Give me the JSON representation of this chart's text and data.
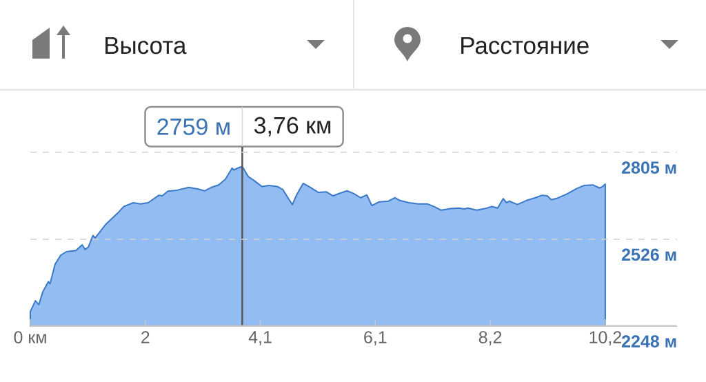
{
  "chart_data": {
    "type": "area",
    "xlabel": "Расстояние",
    "ylabel": "Высота",
    "x": [
      0,
      0.09,
      0.15,
      0.22,
      0.32,
      0.35,
      0.44,
      0.54,
      0.64,
      0.81,
      0.92,
      0.97,
      1.03,
      1.11,
      1.15,
      1.34,
      1.54,
      1.66,
      1.83,
      1.95,
      2.09,
      2.28,
      2.34,
      2.44,
      2.6,
      2.81,
      2.97,
      3.09,
      3.21,
      3.34,
      3.46,
      3.58,
      3.61,
      3.68,
      3.76,
      3.87,
      3.97,
      4.11,
      4.23,
      4.38,
      4.48,
      4.58,
      4.65,
      4.72,
      4.84,
      4.97,
      5.11,
      5.25,
      5.37,
      5.5,
      5.62,
      5.74,
      5.86,
      5.97,
      6.06,
      6.19,
      6.35,
      6.47,
      6.56,
      6.72,
      6.88,
      7.05,
      7.17,
      7.29,
      7.45,
      7.6,
      7.7,
      7.76,
      7.92,
      8.06,
      8.19,
      8.29,
      8.39,
      8.45,
      8.5,
      8.64,
      8.8,
      8.96,
      9.08,
      9.17,
      9.24,
      9.33,
      9.53,
      9.7,
      9.82,
      9.98,
      10.1,
      10.16,
      10.2
    ],
    "series": [
      {
        "color": "#3a78c8",
        "values": [
          2294,
          2329,
          2316,
          2357,
          2390,
          2383,
          2446,
          2475,
          2486,
          2490,
          2508,
          2493,
          2501,
          2538,
          2530,
          2574,
          2608,
          2631,
          2643,
          2639,
          2643,
          2667,
          2665,
          2680,
          2683,
          2692,
          2687,
          2681,
          2692,
          2700,
          2718,
          2754,
          2748,
          2754,
          2759,
          2726,
          2714,
          2695,
          2698,
          2695,
          2685,
          2656,
          2637,
          2667,
          2705,
          2692,
          2676,
          2678,
          2665,
          2674,
          2681,
          2672,
          2659,
          2668,
          2634,
          2646,
          2648,
          2659,
          2650,
          2643,
          2639,
          2639,
          2630,
          2619,
          2624,
          2626,
          2623,
          2626,
          2619,
          2624,
          2631,
          2626,
          2656,
          2643,
          2648,
          2637,
          2650,
          2659,
          2667,
          2665,
          2653,
          2656,
          2672,
          2689,
          2698,
          2700,
          2690,
          2696,
          2703
        ]
      }
    ],
    "xlim": [
      0,
      11.47
    ],
    "xticks": [
      {
        "value": 0,
        "label": "0 км"
      },
      {
        "value": 2.04,
        "label": "2"
      },
      {
        "value": 4.08,
        "label": "4,1"
      },
      {
        "value": 6.12,
        "label": "6,1"
      },
      {
        "value": 8.16,
        "label": "8,2"
      },
      {
        "value": 10.2,
        "label": "10,2"
      }
    ],
    "ylim": [
      2248,
      2805
    ],
    "yticks": [
      {
        "value": 2248,
        "label": "2248 м"
      },
      {
        "value": 2526,
        "label": "2526 м"
      },
      {
        "value": 2805,
        "label": "2805 м"
      }
    ],
    "grid": "y",
    "ref_lines": [
      {
        "axis": "x",
        "value": 3.76,
        "label": "3,76 км",
        "color": "#555555"
      }
    ],
    "annotations": [
      {
        "text": "2759 м",
        "x": 3.76,
        "y": 2759
      }
    ]
  }
}
